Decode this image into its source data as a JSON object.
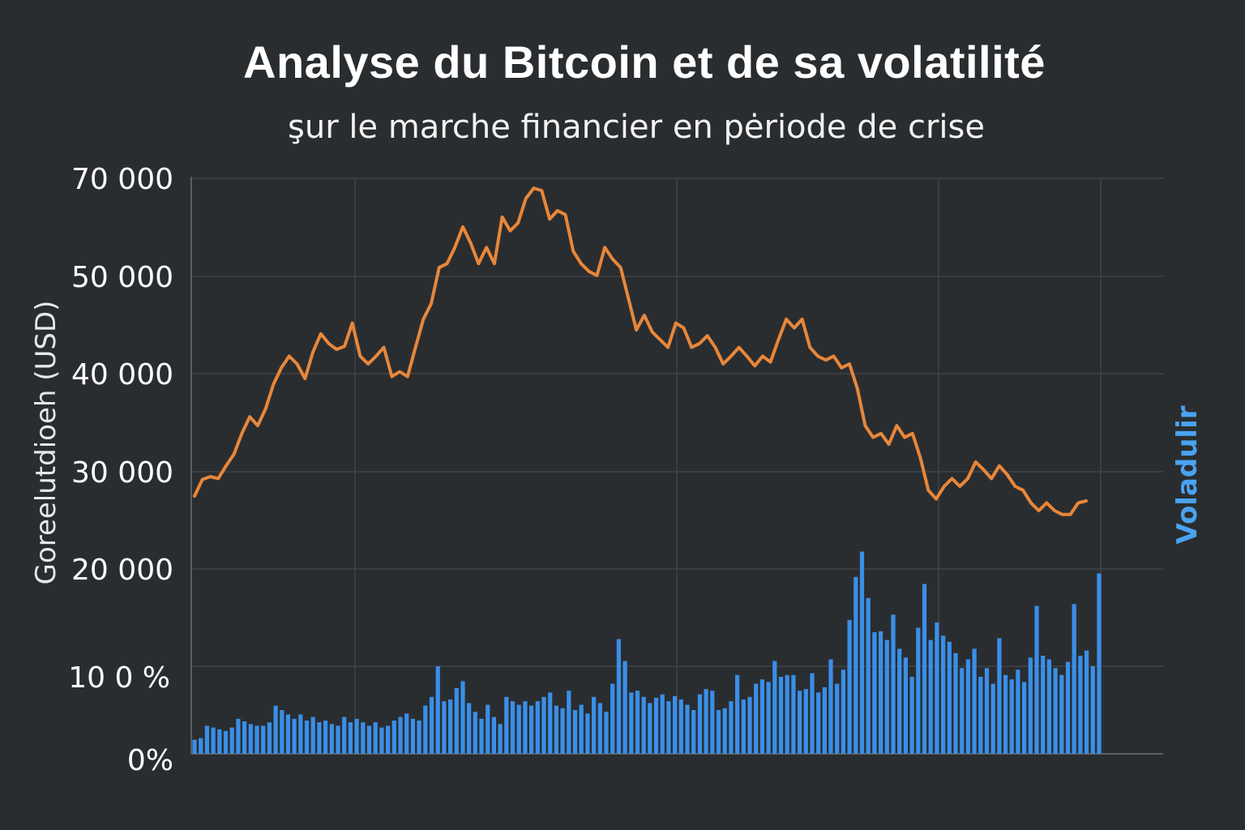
{
  "colors": {
    "background": "#2a2d30",
    "price": "#e8873a",
    "volatility": "#3a8fe8",
    "volatility_label": "#4aa3f0",
    "grid": "#3f4347"
  },
  "chart_data": {
    "type": "line+bar",
    "title": "Analyse du Bitcoin et de sa volatilité",
    "subtitle": "şur le marche financier en pėriode de crise",
    "ylabel": "Goreelutdioeh (USD)",
    "y2label": "Voladulir",
    "xlabel": "",
    "grid": true,
    "y_tick_labels": [
      "70 000",
      "50 000",
      "40 000",
      "30 000",
      "20 000",
      "10 0 %",
      "0%"
    ],
    "price_axis": {
      "unit": "USD",
      "ticks": [
        20000,
        30000,
        40000,
        50000,
        70000
      ]
    },
    "volatility_axis": {
      "unit": "%",
      "ticks": [
        0,
        100
      ]
    },
    "series": [
      {
        "type": "line",
        "color": "#e8873a",
        "values": [
          27500,
          29200,
          29500,
          29300,
          30600,
          31800,
          33900,
          35600,
          34700,
          36400,
          38900,
          40600,
          41800,
          41000,
          39500,
          42200,
          44100,
          43100,
          42500,
          42800,
          45200,
          41800,
          41000,
          41800,
          42700,
          39700,
          40200,
          39700,
          42700,
          45600,
          47200,
          51800,
          52600,
          55900,
          60100,
          56800,
          52600,
          55900,
          52600,
          62100,
          59300,
          60900,
          65900,
          68000,
          67500,
          61700,
          63400,
          62600,
          55100,
          52600,
          51000,
          50200,
          55900,
          53500,
          51800,
          47700,
          44500,
          46000,
          44300,
          43500,
          42700,
          45200,
          44700,
          42700,
          43100,
          43900,
          42700,
          41000,
          41800,
          42700,
          41800,
          40800,
          41800,
          41200,
          43500,
          45600,
          44700,
          45600,
          42700,
          41800,
          41400,
          41800,
          40600,
          41000,
          38500,
          34700,
          33500,
          33900,
          32800,
          34700,
          33500,
          33900,
          31400,
          28100,
          27200,
          28500,
          29300,
          28500,
          29300,
          31000,
          30200,
          29300,
          30600,
          29700,
          28500,
          28100,
          26800,
          26000,
          26800,
          26000,
          25600,
          25600,
          26800,
          27000
        ]
      },
      {
        "type": "bar",
        "color": "#3a8fe8",
        "values": [
          16,
          18,
          32,
          30,
          28,
          26,
          30,
          40,
          37,
          34,
          32,
          32,
          36,
          55,
          50,
          45,
          40,
          45,
          38,
          42,
          36,
          38,
          34,
          32,
          42,
          36,
          40,
          36,
          32,
          36,
          30,
          32,
          38,
          42,
          46,
          40,
          38,
          55,
          65,
          100,
          60,
          62,
          75,
          83,
          58,
          48,
          40,
          56,
          42,
          34,
          65,
          60,
          56,
          60,
          55,
          60,
          65,
          70,
          55,
          52,
          72,
          50,
          56,
          46,
          65,
          58,
          48,
          80,
          131,
          106,
          70,
          72,
          65,
          58,
          64,
          68,
          60,
          66,
          62,
          56,
          50,
          68,
          74,
          72,
          50,
          52,
          60,
          90,
          62,
          65,
          80,
          85,
          82,
          106,
          88,
          90,
          90,
          72,
          74,
          92,
          70,
          76,
          108,
          80,
          96,
          153,
          202,
          231,
          178,
          139,
          140,
          130,
          159,
          120,
          110,
          88,
          144,
          194,
          130,
          150,
          135,
          128,
          115,
          98,
          108,
          120,
          88,
          98,
          80,
          132,
          90,
          85,
          96,
          82,
          110,
          169,
          112,
          108,
          98,
          90,
          105,
          171,
          112,
          118,
          100,
          206
        ]
      }
    ]
  }
}
